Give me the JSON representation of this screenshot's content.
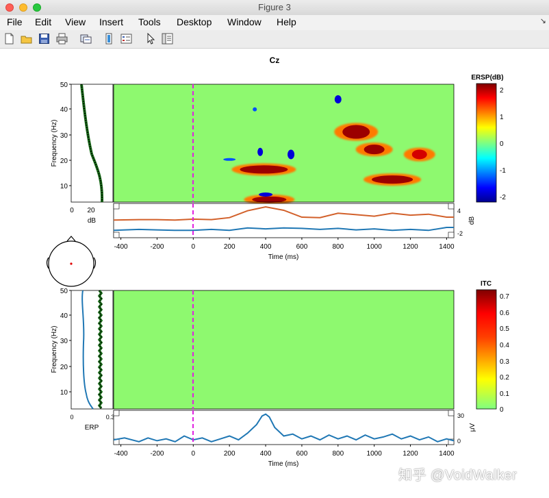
{
  "window": {
    "title": "Figure 3"
  },
  "menu": [
    "File",
    "Edit",
    "View",
    "Insert",
    "Tools",
    "Desktop",
    "Window",
    "Help"
  ],
  "toolbar_icons": [
    "new-figure-icon",
    "open-file-icon",
    "save-icon",
    "print-icon",
    "link-icon",
    "colorbar-icon",
    "legend-icon",
    "pointer-icon",
    "property-editor-icon"
  ],
  "colors": {
    "ersp_bg": "#8ef96f",
    "erp_line": "#1f77b4",
    "ersp_line": "#d2602a",
    "marker": "#e020e0"
  },
  "figure": {
    "channel": "Cz",
    "ersp": {
      "ylabel": "Frequency (Hz)",
      "yticks": [
        "50",
        "40",
        "30",
        "20",
        "10"
      ],
      "spectrum_xticks": [
        "0",
        "20"
      ],
      "spectrum_xlabel": "dB",
      "envelope_yticks": [
        "4",
        "-2"
      ],
      "envelope_ylabel": "dB",
      "colorbar_title": "ERSP(dB)",
      "colorbar_ticks": [
        "2",
        "1",
        "0",
        "-1",
        "-2"
      ]
    },
    "itc": {
      "ylabel": "Frequency (Hz)",
      "yticks": [
        "50",
        "40",
        "30",
        "20",
        "10"
      ],
      "spectrum_xticks": [
        "0",
        "0.3"
      ],
      "spectrum_xlabel": "ERP",
      "erp_yticks": [
        "30",
        "0"
      ],
      "erp_ylabel": "μV",
      "colorbar_title": "ITC",
      "colorbar_ticks": [
        "0.7",
        "0.6",
        "0.5",
        "0.4",
        "0.3",
        "0.2",
        "0.1",
        "0"
      ]
    },
    "xticks": [
      "-400",
      "-200",
      "0",
      "200",
      "400",
      "600",
      "800",
      "1000",
      "1200",
      "1400"
    ],
    "xlabel": "Time (ms)"
  },
  "chart_data": [
    {
      "type": "heatmap",
      "title": "Cz",
      "xlabel": "Time (ms)",
      "ylabel": "Frequency (Hz)",
      "xlim": [
        -440,
        1440
      ],
      "ylim": [
        3,
        50
      ],
      "colorbar_label": "ERSP(dB)",
      "clim": [
        -2.2,
        2.2
      ],
      "event_marker_ms": 0,
      "blobs": [
        {
          "t": 390,
          "f": 16,
          "value": 2.1
        },
        {
          "t": 1100,
          "f": 12,
          "value": 2.0
        },
        {
          "t": 900,
          "f": 31,
          "value": 2.0
        },
        {
          "t": 1000,
          "f": 24,
          "value": 2.0
        },
        {
          "t": 1250,
          "f": 22,
          "value": 1.8
        },
        {
          "t": 420,
          "f": 4,
          "value": 2.0
        },
        {
          "t": 400,
          "f": 6,
          "value": -2.0
        },
        {
          "t": 800,
          "f": 44,
          "value": -2.0
        },
        {
          "t": 370,
          "f": 23,
          "value": -2.0
        },
        {
          "t": 540,
          "f": 22,
          "value": -2.0
        },
        {
          "t": 340,
          "f": 40,
          "value": -1.8
        },
        {
          "t": 200,
          "f": 20,
          "value": -1.6
        }
      ]
    },
    {
      "type": "line",
      "xlabel": "Time (ms)",
      "ylabel": "dB",
      "xlim": [
        -440,
        1440
      ],
      "ylim": [
        -2.5,
        4.5
      ],
      "series": [
        {
          "x": [
            -440,
            -300,
            -200,
            -100,
            0,
            100,
            200,
            300,
            400,
            500,
            600,
            700,
            800,
            900,
            1000,
            1100,
            1200,
            1300,
            1400,
            1440
          ],
          "y": [
            1.1,
            1.2,
            1.2,
            1.1,
            1.3,
            1.2,
            1.6,
            3.0,
            3.8,
            3.1,
            1.7,
            1.6,
            2.5,
            2.2,
            1.9,
            2.5,
            2.1,
            2.3,
            1.7,
            1.7
          ]
        },
        {
          "x": [
            -440,
            -300,
            -200,
            -100,
            0,
            100,
            200,
            300,
            400,
            500,
            600,
            700,
            800,
            900,
            1000,
            1100,
            1200,
            1300,
            1400,
            1440
          ],
          "y": [
            -1.0,
            -0.8,
            -0.9,
            -1.0,
            -1.0,
            -0.8,
            -1.0,
            -0.5,
            -0.7,
            -0.5,
            -0.6,
            -0.8,
            -0.6,
            -0.9,
            -0.7,
            -1.0,
            -0.8,
            -1.0,
            -0.4,
            -0.4
          ]
        }
      ]
    },
    {
      "type": "heatmap",
      "xlabel": "Time (ms)",
      "ylabel": "Frequency (Hz)",
      "xlim": [
        -440,
        1440
      ],
      "ylim": [
        3,
        50
      ],
      "colorbar_label": "ITC",
      "clim": [
        0,
        0.75
      ],
      "event_marker_ms": 0,
      "uniform_value": 0.0
    },
    {
      "type": "line",
      "xlabel": "Time (ms)",
      "ylabel": "μV",
      "xlim": [
        -440,
        1440
      ],
      "ylim": [
        -3,
        33
      ],
      "series": [
        {
          "x": [
            -440,
            -380,
            -300,
            -250,
            -200,
            -150,
            -100,
            -50,
            0,
            50,
            100,
            150,
            200,
            250,
            300,
            350,
            380,
            400,
            420,
            450,
            500,
            550,
            600,
            650,
            700,
            750,
            800,
            850,
            900,
            950,
            1000,
            1050,
            1100,
            1150,
            1200,
            1250,
            1300,
            1350,
            1400,
            1440
          ],
          "y": [
            2,
            4,
            0,
            4,
            1,
            3,
            0,
            6,
            2,
            4,
            0,
            3,
            6,
            2,
            9,
            18,
            27,
            29,
            26,
            15,
            6,
            8,
            3,
            6,
            2,
            7,
            3,
            6,
            2,
            7,
            3,
            5,
            8,
            3,
            6,
            2,
            5,
            0,
            3,
            1
          ]
        }
      ]
    }
  ],
  "watermark": "知乎 @VoidWalker"
}
